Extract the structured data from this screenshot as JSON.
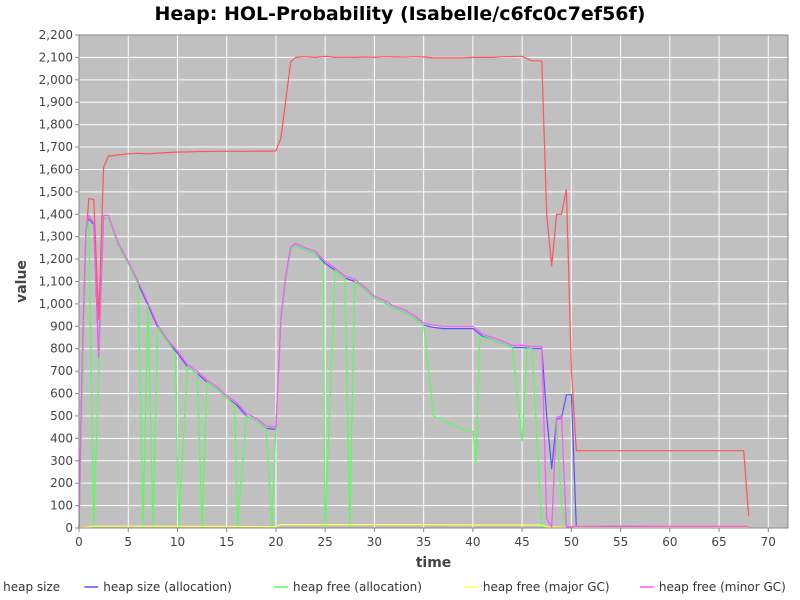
{
  "chart_data": {
    "type": "line",
    "title": "Heap: HOL-Probability (Isabelle/c6fc0c7ef56f)",
    "xlabel": "time",
    "ylabel": "value",
    "xlim": [
      0,
      72
    ],
    "ylim": [
      0,
      2200
    ],
    "xticks": [
      0,
      5,
      10,
      15,
      20,
      25,
      30,
      35,
      40,
      45,
      50,
      55,
      60,
      65,
      70
    ],
    "yticks": [
      0,
      100,
      200,
      300,
      400,
      500,
      600,
      700,
      800,
      900,
      1000,
      1100,
      1200,
      1300,
      1400,
      1500,
      1600,
      1700,
      1800,
      1900,
      2000,
      2100,
      2200
    ],
    "ytick_labels": [
      "0",
      "100",
      "200",
      "300",
      "400",
      "500",
      "600",
      "700",
      "800",
      "900",
      "1,000",
      "1,100",
      "1,200",
      "1,300",
      "1,400",
      "1,500",
      "1,600",
      "1,700",
      "1,800",
      "1,900",
      "2,000",
      "2,100",
      "2,200"
    ],
    "grid": true,
    "background": "#c0c0c0",
    "gridline_color": "#ffffff",
    "legend_position": "bottom",
    "series": [
      {
        "name": "heap size",
        "color": "#ff5555",
        "points": [
          [
            0,
            0
          ],
          [
            0.3,
            600
          ],
          [
            0.7,
            1290
          ],
          [
            1,
            1470
          ],
          [
            1.5,
            1465
          ],
          [
            2,
            930
          ],
          [
            2.5,
            1610
          ],
          [
            3,
            1660
          ],
          [
            4,
            1665
          ],
          [
            5,
            1670
          ],
          [
            6,
            1672
          ],
          [
            7,
            1670
          ],
          [
            8,
            1673
          ],
          [
            9,
            1675
          ],
          [
            10,
            1678
          ],
          [
            11,
            1678
          ],
          [
            12,
            1680
          ],
          [
            13,
            1680
          ],
          [
            14,
            1681
          ],
          [
            15,
            1681
          ],
          [
            16,
            1681
          ],
          [
            17,
            1681
          ],
          [
            18,
            1682
          ],
          [
            19,
            1682
          ],
          [
            20,
            1683
          ],
          [
            20.5,
            1740
          ],
          [
            21,
            1910
          ],
          [
            21.5,
            2080
          ],
          [
            22,
            2100
          ],
          [
            23,
            2103
          ],
          [
            24,
            2100
          ],
          [
            25,
            2105
          ],
          [
            26,
            2100
          ],
          [
            27,
            2101
          ],
          [
            28,
            2100
          ],
          [
            29,
            2102
          ],
          [
            30,
            2100
          ],
          [
            31,
            2103
          ],
          [
            32,
            2102
          ],
          [
            33,
            2101
          ],
          [
            34,
            2103
          ],
          [
            35,
            2102
          ],
          [
            36,
            2098
          ],
          [
            37,
            2098
          ],
          [
            38,
            2098
          ],
          [
            39,
            2098
          ],
          [
            40,
            2100
          ],
          [
            41,
            2100
          ],
          [
            42,
            2100
          ],
          [
            43,
            2103
          ],
          [
            44,
            2104
          ],
          [
            45,
            2105
          ],
          [
            46,
            2085
          ],
          [
            47,
            2085
          ],
          [
            47.5,
            1400
          ],
          [
            48,
            1170
          ],
          [
            48.5,
            1400
          ],
          [
            49,
            1400
          ],
          [
            49.5,
            1510
          ],
          [
            50,
            700
          ],
          [
            50.5,
            345
          ],
          [
            55,
            345
          ],
          [
            60,
            345
          ],
          [
            65,
            345
          ],
          [
            67.5,
            345
          ],
          [
            68,
            55
          ]
        ]
      },
      {
        "name": "heap size (allocation)",
        "color": "#5555ff",
        "points": [
          [
            0,
            0
          ],
          [
            0.3,
            700
          ],
          [
            0.7,
            1320
          ],
          [
            1,
            1380
          ],
          [
            1.5,
            1355
          ],
          [
            2,
            760
          ],
          [
            2.5,
            1385
          ],
          [
            3,
            1385
          ],
          [
            4,
            1260
          ],
          [
            5,
            1180
          ],
          [
            6,
            1090
          ],
          [
            7,
            995
          ],
          [
            8,
            895
          ],
          [
            9,
            830
          ],
          [
            10,
            780
          ],
          [
            11,
            720
          ],
          [
            12,
            690
          ],
          [
            13,
            650
          ],
          [
            14,
            620
          ],
          [
            15,
            580
          ],
          [
            16,
            550
          ],
          [
            17,
            500
          ],
          [
            18,
            480
          ],
          [
            19,
            445
          ],
          [
            20,
            440
          ],
          [
            20.5,
            930
          ],
          [
            21,
            1120
          ],
          [
            21.5,
            1245
          ],
          [
            22,
            1260
          ],
          [
            23,
            1240
          ],
          [
            24,
            1225
          ],
          [
            25,
            1180
          ],
          [
            26,
            1150
          ],
          [
            27,
            1115
          ],
          [
            28,
            1100
          ],
          [
            29,
            1065
          ],
          [
            30,
            1025
          ],
          [
            31,
            1005
          ],
          [
            32,
            980
          ],
          [
            33,
            965
          ],
          [
            34,
            940
          ],
          [
            35,
            905
          ],
          [
            36,
            895
          ],
          [
            37,
            890
          ],
          [
            38,
            890
          ],
          [
            39,
            890
          ],
          [
            40,
            890
          ],
          [
            41,
            855
          ],
          [
            42,
            840
          ],
          [
            43,
            825
          ],
          [
            44,
            805
          ],
          [
            45,
            805
          ],
          [
            46,
            800
          ],
          [
            47,
            800
          ],
          [
            47.5,
            500
          ],
          [
            48,
            265
          ],
          [
            48.5,
            485
          ],
          [
            49,
            490
          ],
          [
            49.5,
            595
          ],
          [
            50,
            595
          ],
          [
            50.5,
            5
          ],
          [
            55,
            5
          ],
          [
            60,
            4
          ],
          [
            65,
            4
          ],
          [
            68,
            3
          ]
        ]
      },
      {
        "name": "heap free (allocation)",
        "color": "#55ff55",
        "points": [
          [
            0,
            0
          ],
          [
            0.7,
            1300
          ],
          [
            1,
            1370
          ],
          [
            1.5,
            5
          ],
          [
            2,
            700
          ],
          [
            2.5,
            1385
          ],
          [
            3,
            1385
          ],
          [
            4,
            1260
          ],
          [
            5,
            1180
          ],
          [
            6,
            1090
          ],
          [
            6.5,
            5
          ],
          [
            7,
            995
          ],
          [
            7.5,
            5
          ],
          [
            8,
            895
          ],
          [
            9,
            830
          ],
          [
            9.8,
            780
          ],
          [
            10.1,
            5
          ],
          [
            11,
            720
          ],
          [
            12,
            690
          ],
          [
            12.5,
            5
          ],
          [
            13,
            650
          ],
          [
            14,
            620
          ],
          [
            15,
            580
          ],
          [
            15.8,
            550
          ],
          [
            16.1,
            5
          ],
          [
            17,
            500
          ],
          [
            18,
            480
          ],
          [
            19,
            445
          ],
          [
            19.6,
            5
          ],
          [
            20,
            440
          ],
          [
            20.5,
            930
          ],
          [
            21,
            1120
          ],
          [
            21.5,
            1245
          ],
          [
            22,
            1260
          ],
          [
            23,
            1240
          ],
          [
            24,
            1225
          ],
          [
            24.8,
            1180
          ],
          [
            25,
            5
          ],
          [
            26,
            1150
          ],
          [
            27,
            1115
          ],
          [
            27.5,
            5
          ],
          [
            28,
            1100
          ],
          [
            29,
            1065
          ],
          [
            30,
            1025
          ],
          [
            31,
            1005
          ],
          [
            32,
            980
          ],
          [
            33,
            965
          ],
          [
            34,
            940
          ],
          [
            35,
            905
          ],
          [
            36,
            500
          ],
          [
            37,
            480
          ],
          [
            38,
            460
          ],
          [
            39,
            440
          ],
          [
            40,
            430
          ],
          [
            40.3,
            290
          ],
          [
            40.7,
            855
          ],
          [
            42,
            840
          ],
          [
            43,
            825
          ],
          [
            44,
            805
          ],
          [
            45,
            390
          ],
          [
            45.5,
            800
          ],
          [
            46,
            800
          ],
          [
            47,
            5
          ],
          [
            47.5,
            5
          ],
          [
            48,
            5
          ],
          [
            48.5,
            485
          ],
          [
            49,
            100
          ],
          [
            49.5,
            5
          ],
          [
            50,
            5
          ],
          [
            50.5,
            3
          ],
          [
            55,
            2
          ],
          [
            60,
            2
          ],
          [
            65,
            2
          ],
          [
            68,
            2
          ]
        ]
      },
      {
        "name": "heap free (major GC)",
        "color": "#ffff55",
        "points": [
          [
            0,
            0
          ],
          [
            1.5,
            8
          ],
          [
            5,
            8
          ],
          [
            10,
            7
          ],
          [
            15,
            7
          ],
          [
            20,
            6
          ],
          [
            20.5,
            15
          ],
          [
            25,
            15
          ],
          [
            30,
            15
          ],
          [
            35,
            15
          ],
          [
            40,
            14
          ],
          [
            45,
            14
          ],
          [
            47,
            13
          ],
          [
            47.5,
            5
          ],
          [
            50,
            3
          ],
          [
            55,
            2
          ],
          [
            60,
            2
          ],
          [
            65,
            2
          ],
          [
            68,
            2
          ]
        ]
      },
      {
        "name": "heap free (minor GC)",
        "color": "#ff55ff",
        "points": [
          [
            0,
            0
          ],
          [
            0.3,
            720
          ],
          [
            0.7,
            1330
          ],
          [
            1,
            1395
          ],
          [
            1.5,
            1365
          ],
          [
            2,
            770
          ],
          [
            2.5,
            1395
          ],
          [
            3,
            1395
          ],
          [
            4,
            1270
          ],
          [
            5,
            1190
          ],
          [
            6,
            1100
          ],
          [
            7,
            1005
          ],
          [
            8,
            905
          ],
          [
            9,
            840
          ],
          [
            10,
            790
          ],
          [
            11,
            730
          ],
          [
            12,
            700
          ],
          [
            13,
            660
          ],
          [
            14,
            630
          ],
          [
            15,
            590
          ],
          [
            16,
            560
          ],
          [
            17,
            510
          ],
          [
            18,
            490
          ],
          [
            19,
            455
          ],
          [
            20,
            450
          ],
          [
            20.5,
            940
          ],
          [
            21,
            1130
          ],
          [
            21.5,
            1255
          ],
          [
            22,
            1270
          ],
          [
            23,
            1250
          ],
          [
            24,
            1235
          ],
          [
            25,
            1190
          ],
          [
            26,
            1160
          ],
          [
            27,
            1125
          ],
          [
            28,
            1110
          ],
          [
            29,
            1075
          ],
          [
            30,
            1035
          ],
          [
            31,
            1015
          ],
          [
            32,
            990
          ],
          [
            33,
            975
          ],
          [
            34,
            950
          ],
          [
            35,
            915
          ],
          [
            36,
            905
          ],
          [
            37,
            900
          ],
          [
            38,
            900
          ],
          [
            39,
            900
          ],
          [
            40,
            900
          ],
          [
            41,
            865
          ],
          [
            42,
            850
          ],
          [
            43,
            835
          ],
          [
            44,
            815
          ],
          [
            45,
            815
          ],
          [
            46,
            810
          ],
          [
            47,
            810
          ],
          [
            47.5,
            40
          ],
          [
            48,
            5
          ],
          [
            48.5,
            495
          ],
          [
            49,
            500
          ],
          [
            49.5,
            5
          ],
          [
            50,
            5
          ],
          [
            50.5,
            8
          ],
          [
            55,
            8
          ],
          [
            60,
            7
          ],
          [
            65,
            7
          ],
          [
            68,
            7
          ]
        ]
      }
    ]
  }
}
